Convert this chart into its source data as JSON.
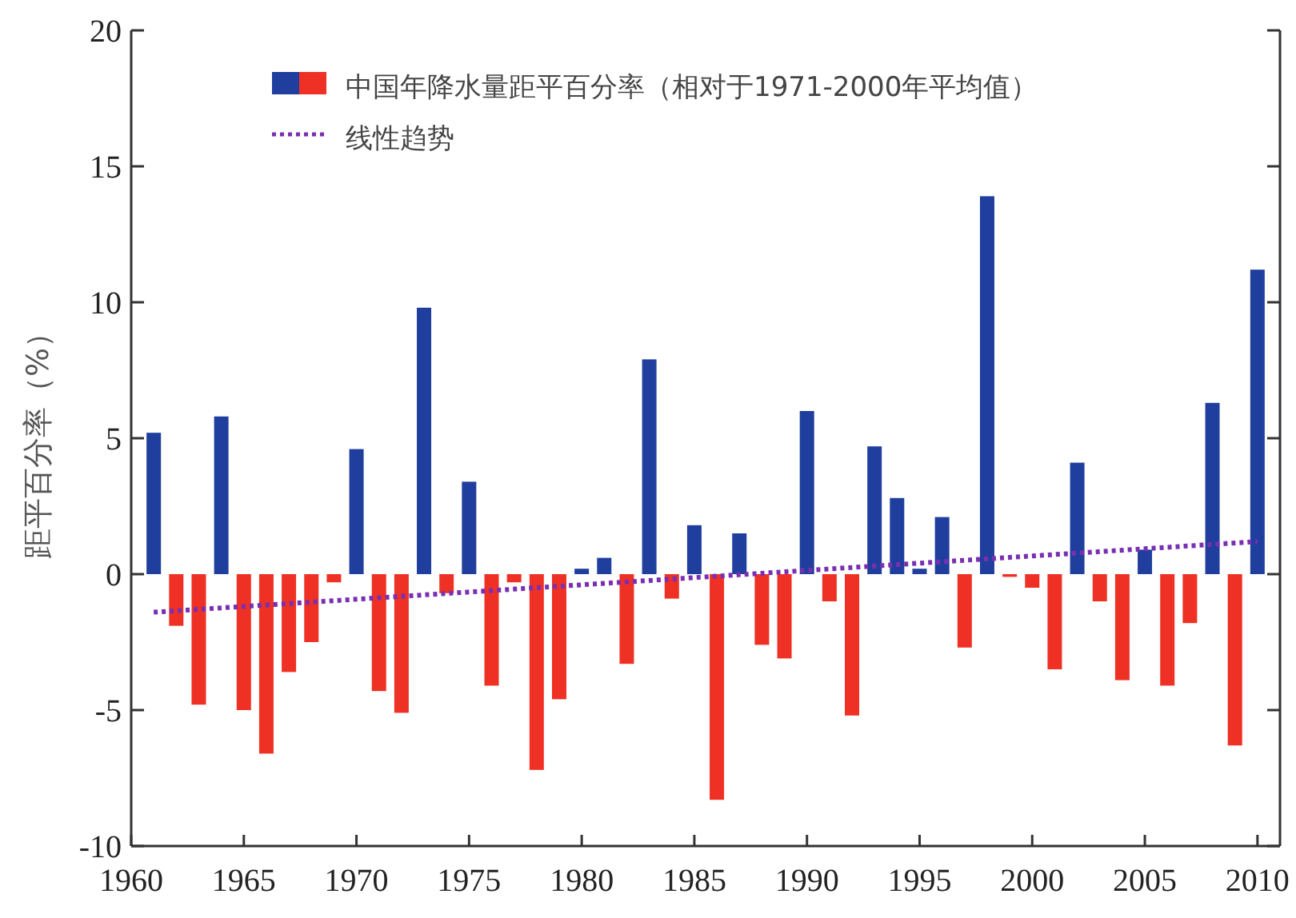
{
  "chart_data": {
    "type": "bar",
    "ylabel": "距平百分率（%）",
    "x": [
      1961,
      1962,
      1963,
      1964,
      1965,
      1966,
      1967,
      1968,
      1969,
      1970,
      1971,
      1972,
      1973,
      1974,
      1975,
      1976,
      1977,
      1978,
      1979,
      1980,
      1981,
      1982,
      1983,
      1984,
      1985,
      1986,
      1987,
      1988,
      1989,
      1990,
      1991,
      1992,
      1993,
      1994,
      1995,
      1996,
      1997,
      1998,
      1999,
      2000,
      2001,
      2002,
      2003,
      2004,
      2005,
      2006,
      2007,
      2008,
      2009,
      2010
    ],
    "series": [
      {
        "name": "中国年降水量距平百分率（相对于1971-2000年平均值）",
        "colors": [
          "#1f3e9e",
          "#ee3124",
          "#ee3124",
          "#1f3e9e",
          "#ee3124",
          "#ee3124",
          "#ee3124",
          "#ee3124",
          "#ee3124",
          "#1f3e9e",
          "#ee3124",
          "#ee3124",
          "#1f3e9e",
          "#ee3124",
          "#1f3e9e",
          "#ee3124",
          "#ee3124",
          "#ee3124",
          "#ee3124",
          "#1f3e9e",
          "#1f3e9e",
          "#ee3124",
          "#1f3e9e",
          "#ee3124",
          "#1f3e9e",
          "#ee3124",
          "#1f3e9e",
          "#ee3124",
          "#ee3124",
          "#1f3e9e",
          "#ee3124",
          "#ee3124",
          "#1f3e9e",
          "#1f3e9e",
          "#1f3e9e",
          "#1f3e9e",
          "#ee3124",
          "#1f3e9e",
          "#ee3124",
          "#ee3124",
          "#ee3124",
          "#1f3e9e",
          "#ee3124",
          "#ee3124",
          "#1f3e9e",
          "#ee3124",
          "#ee3124",
          "#1f3e9e",
          "#ee3124",
          "#1f3e9e"
        ],
        "values": [
          5.2,
          -1.9,
          -4.8,
          5.8,
          -5.0,
          -6.6,
          -3.6,
          -2.5,
          -0.3,
          4.6,
          -4.3,
          -5.1,
          9.8,
          -0.7,
          3.4,
          -4.1,
          -0.3,
          -7.2,
          -4.6,
          0.2,
          0.6,
          -3.3,
          7.9,
          -0.9,
          1.8,
          -8.3,
          1.5,
          -2.6,
          -3.1,
          6.0,
          -1.0,
          -5.2,
          4.7,
          2.8,
          0.2,
          2.1,
          -2.7,
          13.9,
          -0.1,
          -0.5,
          -3.5,
          4.1,
          -1.0,
          -3.9,
          0.9,
          -4.1,
          -1.8,
          6.3,
          -6.3,
          11.2
        ]
      },
      {
        "name": "线性趋势",
        "type": "line",
        "color": "#7a2fb2",
        "line_style": "dotted",
        "x": [
          1961,
          2010
        ],
        "values": [
          -1.4,
          1.2
        ]
      }
    ],
    "xlim": [
      1960,
      2011
    ],
    "ylim": [
      -10,
      20
    ],
    "xticks": [
      1960,
      1965,
      1970,
      1975,
      1980,
      1985,
      1990,
      1995,
      2000,
      2005,
      2010
    ],
    "yticks": [
      -10,
      -5,
      0,
      5,
      10,
      15,
      20
    ],
    "legend": "top left",
    "grid": false
  }
}
